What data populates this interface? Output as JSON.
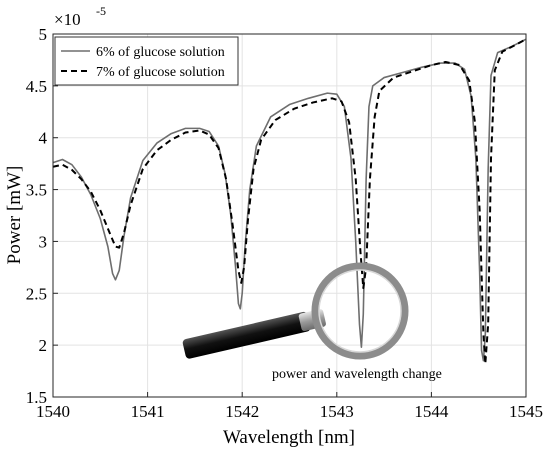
{
  "chart_data": {
    "type": "line",
    "xlabel": "Wavelength [nm]",
    "ylabel": "Power [mW]",
    "y_multiplier": "×10",
    "y_exponent": "-5",
    "xlim": [
      1540,
      1545
    ],
    "ylim": [
      1.5,
      5
    ],
    "xticks": [
      "1540",
      "1541",
      "1542",
      "1543",
      "1544",
      "1545"
    ],
    "yticks": [
      "1.5",
      "2",
      "2.5",
      "3",
      "3.5",
      "4",
      "4.5",
      "5"
    ],
    "grid": true,
    "legend_position": "top-left",
    "annotation": "power and wavelength change",
    "series": [
      {
        "name": "6% of glucose solution",
        "style": "solid",
        "color": "#6e6e6e",
        "points": [
          [
            1540.0,
            3.76
          ],
          [
            1540.1,
            3.79
          ],
          [
            1540.2,
            3.74
          ],
          [
            1540.3,
            3.62
          ],
          [
            1540.4,
            3.45
          ],
          [
            1540.5,
            3.22
          ],
          [
            1540.58,
            2.95
          ],
          [
            1540.63,
            2.69
          ],
          [
            1540.66,
            2.63
          ],
          [
            1540.7,
            2.72
          ],
          [
            1540.75,
            3.05
          ],
          [
            1540.82,
            3.42
          ],
          [
            1540.95,
            3.78
          ],
          [
            1541.1,
            3.95
          ],
          [
            1541.25,
            4.04
          ],
          [
            1541.4,
            4.09
          ],
          [
            1541.55,
            4.09
          ],
          [
            1541.65,
            4.06
          ],
          [
            1541.75,
            3.92
          ],
          [
            1541.82,
            3.65
          ],
          [
            1541.88,
            3.25
          ],
          [
            1541.93,
            2.75
          ],
          [
            1541.96,
            2.4
          ],
          [
            1541.98,
            2.35
          ],
          [
            1542.0,
            2.5
          ],
          [
            1542.03,
            2.95
          ],
          [
            1542.08,
            3.5
          ],
          [
            1542.15,
            3.92
          ],
          [
            1542.3,
            4.2
          ],
          [
            1542.5,
            4.32
          ],
          [
            1542.7,
            4.38
          ],
          [
            1542.9,
            4.43
          ],
          [
            1543.0,
            4.42
          ],
          [
            1543.08,
            4.3
          ],
          [
            1543.15,
            3.8
          ],
          [
            1543.2,
            3.0
          ],
          [
            1543.24,
            2.2
          ],
          [
            1543.26,
            1.98
          ],
          [
            1543.28,
            2.3
          ],
          [
            1543.31,
            3.6
          ],
          [
            1543.34,
            4.3
          ],
          [
            1543.38,
            4.5
          ],
          [
            1543.5,
            4.58
          ],
          [
            1543.7,
            4.63
          ],
          [
            1543.9,
            4.68
          ],
          [
            1544.1,
            4.72
          ],
          [
            1544.25,
            4.72
          ],
          [
            1544.35,
            4.66
          ],
          [
            1544.42,
            4.4
          ],
          [
            1544.47,
            3.8
          ],
          [
            1544.51,
            2.7
          ],
          [
            1544.53,
            1.95
          ],
          [
            1544.55,
            1.85
          ],
          [
            1544.57,
            2.1
          ],
          [
            1544.6,
            3.7
          ],
          [
            1544.63,
            4.6
          ],
          [
            1544.7,
            4.82
          ],
          [
            1544.85,
            4.88
          ],
          [
            1545.0,
            4.95
          ]
        ]
      },
      {
        "name": "7% of glucose solution",
        "style": "dashed",
        "color": "#000000",
        "points": [
          [
            1540.0,
            3.72
          ],
          [
            1540.1,
            3.74
          ],
          [
            1540.2,
            3.69
          ],
          [
            1540.3,
            3.6
          ],
          [
            1540.4,
            3.48
          ],
          [
            1540.5,
            3.3
          ],
          [
            1540.6,
            3.08
          ],
          [
            1540.66,
            2.95
          ],
          [
            1540.7,
            2.94
          ],
          [
            1540.75,
            3.08
          ],
          [
            1540.82,
            3.35
          ],
          [
            1540.95,
            3.7
          ],
          [
            1541.1,
            3.88
          ],
          [
            1541.25,
            3.98
          ],
          [
            1541.4,
            4.05
          ],
          [
            1541.55,
            4.07
          ],
          [
            1541.65,
            4.03
          ],
          [
            1541.75,
            3.9
          ],
          [
            1541.83,
            3.6
          ],
          [
            1541.9,
            3.15
          ],
          [
            1541.96,
            2.72
          ],
          [
            1541.99,
            2.6
          ],
          [
            1542.02,
            2.75
          ],
          [
            1542.06,
            3.2
          ],
          [
            1542.12,
            3.7
          ],
          [
            1542.2,
            3.98
          ],
          [
            1542.35,
            4.17
          ],
          [
            1542.55,
            4.28
          ],
          [
            1542.75,
            4.34
          ],
          [
            1542.95,
            4.38
          ],
          [
            1543.05,
            4.35
          ],
          [
            1543.13,
            4.15
          ],
          [
            1543.2,
            3.6
          ],
          [
            1543.25,
            2.9
          ],
          [
            1543.28,
            2.55
          ],
          [
            1543.31,
            2.75
          ],
          [
            1543.35,
            3.6
          ],
          [
            1543.4,
            4.2
          ],
          [
            1543.45,
            4.45
          ],
          [
            1543.6,
            4.58
          ],
          [
            1543.8,
            4.64
          ],
          [
            1544.0,
            4.7
          ],
          [
            1544.15,
            4.73
          ],
          [
            1544.3,
            4.7
          ],
          [
            1544.4,
            4.55
          ],
          [
            1544.46,
            4.15
          ],
          [
            1544.51,
            3.3
          ],
          [
            1544.55,
            2.1
          ],
          [
            1544.57,
            1.82
          ],
          [
            1544.6,
            2.2
          ],
          [
            1544.63,
            3.8
          ],
          [
            1544.67,
            4.65
          ],
          [
            1544.75,
            4.83
          ],
          [
            1544.9,
            4.9
          ],
          [
            1545.0,
            4.95
          ]
        ]
      }
    ]
  }
}
